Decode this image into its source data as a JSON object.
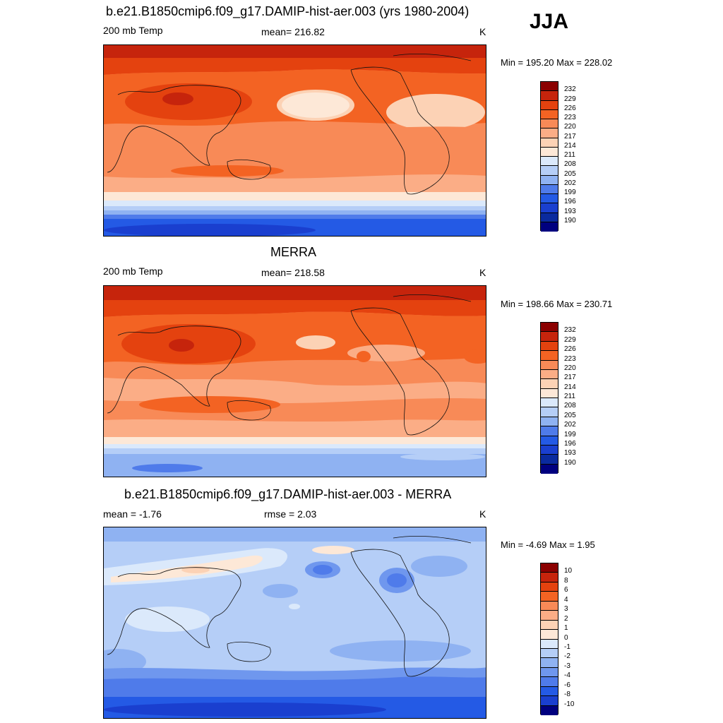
{
  "season": "JJA",
  "panels": [
    {
      "title": "b.e21.B1850cmip6.f09_g17.DAMIP-hist-aer.003 (yrs 1980-2004)",
      "left_label": "200 mb Temp",
      "center_label": "mean= 216.82",
      "units": "K",
      "minmax": "Min = 195.20 Max = 228.02",
      "colorbar_labels": [
        "232",
        "229",
        "226",
        "223",
        "220",
        "217",
        "214",
        "211",
        "208",
        "205",
        "202",
        "199",
        "196",
        "193",
        "190"
      ]
    },
    {
      "title": "MERRA",
      "left_label": "200 mb Temp",
      "center_label": "mean= 218.58",
      "units": "K",
      "minmax": "Min = 198.66 Max = 230.71",
      "colorbar_labels": [
        "232",
        "229",
        "226",
        "223",
        "220",
        "217",
        "214",
        "211",
        "208",
        "205",
        "202",
        "199",
        "196",
        "193",
        "190"
      ]
    },
    {
      "title": "b.e21.B1850cmip6.f09_g17.DAMIP-hist-aer.003 - MERRA",
      "left_label": "mean =  -1.76",
      "center_label": "rmse =   2.03",
      "units": "K",
      "minmax": "Min =  -4.69 Max =   1.95",
      "colorbar_labels": [
        "10",
        "8",
        "6",
        "4",
        "3",
        "2",
        "1",
        "0",
        "-1",
        "-2",
        "-3",
        "-4",
        "-6",
        "-8",
        "-10"
      ]
    }
  ],
  "colors": {
    "abs_scale": [
      "#8b0000",
      "#c6240c",
      "#e4420f",
      "#f36323",
      "#f88a57",
      "#fbad86",
      "#fcd2b5",
      "#fde8d7",
      "#dbe9fb",
      "#b5cef7",
      "#8fb2f2",
      "#4f7bea",
      "#245ae5",
      "#1a3fcf",
      "#0a2a9e",
      "#00007f"
    ],
    "diff_scale": [
      "#8b0000",
      "#c6240c",
      "#e4420f",
      "#f36323",
      "#f88a57",
      "#fbad86",
      "#fcd2b5",
      "#fde8d7",
      "#dbe9fb",
      "#b5cef7",
      "#8fb2f2",
      "#6f97ee",
      "#4f7bea",
      "#245ae5",
      "#1a3fcf",
      "#00007f"
    ]
  }
}
